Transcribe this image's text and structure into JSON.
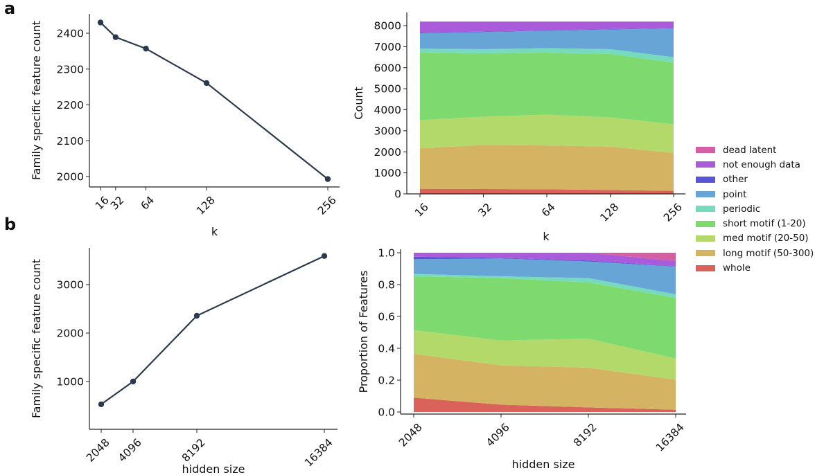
{
  "panels": {
    "a": "a",
    "b": "b"
  },
  "colors": {
    "line": "#2b3a4e",
    "dead latent": "#d45fa5",
    "not enough data": "#a95bd9",
    "other": "#5a55d6",
    "point": "#67a5d6",
    "periodic": "#76dbbe",
    "short motif (1-20)": "#7ed96e",
    "med motif (20-50)": "#b3d96a",
    "long motif (50-300)": "#d4b462",
    "whole": "#d9635a"
  },
  "legend": [
    "dead latent",
    "not enough data",
    "other",
    "point",
    "periodic",
    "short motif (1-20)",
    "med motif (20-50)",
    "long motif (50-300)",
    "whole"
  ],
  "chart_data": [
    {
      "type": "line",
      "xlabel": "k",
      "ylabel": "Family specific feature count",
      "x": [
        16,
        32,
        64,
        128,
        256
      ],
      "xticks": [
        "16",
        "32",
        "64",
        "128",
        "256"
      ],
      "y": [
        2430,
        2389,
        2357,
        2261,
        1993
      ],
      "yticks": [
        2000,
        2100,
        2200,
        2300,
        2400
      ],
      "grid": false
    },
    {
      "type": "area",
      "stacked": true,
      "xlabel": "k",
      "ylabel": "Count",
      "categories": [
        "16",
        "32",
        "64",
        "128",
        "256"
      ],
      "ylim": [
        0,
        8192
      ],
      "yticks": [
        0,
        1000,
        2000,
        3000,
        4000,
        5000,
        6000,
        7000,
        8000
      ],
      "grid": false,
      "series": [
        {
          "name": "whole",
          "values": [
            241,
            230,
            219,
            186,
            142
          ]
        },
        {
          "name": "long motif (50-300)",
          "values": [
            1929,
            2093,
            2082,
            2061,
            1809
          ]
        },
        {
          "name": "med motif (20-50)",
          "values": [
            1337,
            1348,
            1469,
            1391,
            1359
          ]
        },
        {
          "name": "short motif (1-20)",
          "values": [
            3211,
            3014,
            2948,
            3014,
            2937
          ]
        },
        {
          "name": "periodic",
          "values": [
            186,
            197,
            208,
            230,
            249
          ]
        },
        {
          "name": "point",
          "values": [
            734,
            811,
            833,
            932,
            1372
          ]
        },
        {
          "name": "other",
          "values": [
            33,
            22,
            22,
            22,
            22
          ]
        },
        {
          "name": "not enough data",
          "values": [
            521,
            477,
            411,
            356,
            302
          ]
        },
        {
          "name": "dead latent",
          "values": [
            0,
            0,
            0,
            0,
            0
          ]
        }
      ]
    },
    {
      "type": "line",
      "xlabel": "hidden size",
      "ylabel": "Family specific feature count",
      "x": [
        2048,
        4096,
        8192,
        16384
      ],
      "xticks": [
        "2048",
        "4096",
        "8192",
        "16384"
      ],
      "y": [
        530,
        1000,
        2357,
        3590
      ],
      "yticks": [
        1000,
        2000,
        3000
      ],
      "grid": false
    },
    {
      "type": "area",
      "stacked": true,
      "xlabel": "hidden size",
      "ylabel": "Proportion of Features",
      "categories": [
        "2048",
        "4096",
        "8192",
        "16384"
      ],
      "ylim": [
        0,
        1.0
      ],
      "yticks": [
        "0.0",
        "0.2",
        "0.4",
        "0.6",
        "0.8",
        "1.0"
      ],
      "grid": false,
      "series": [
        {
          "name": "whole",
          "values": [
            0.09,
            0.046,
            0.029,
            0.014
          ]
        },
        {
          "name": "long motif (50-300)",
          "values": [
            0.275,
            0.247,
            0.249,
            0.189
          ]
        },
        {
          "name": "med motif (20-50)",
          "values": [
            0.149,
            0.156,
            0.183,
            0.133
          ]
        },
        {
          "name": "short motif (1-20)",
          "values": [
            0.338,
            0.392,
            0.353,
            0.381
          ]
        },
        {
          "name": "periodic",
          "values": [
            0.015,
            0.011,
            0.027,
            0.022
          ]
        },
        {
          "name": "point",
          "values": [
            0.092,
            0.112,
            0.104,
            0.174
          ]
        },
        {
          "name": "other",
          "values": [
            0.016,
            0.004,
            0.006,
            0.003
          ]
        },
        {
          "name": "not enough data",
          "values": [
            0.025,
            0.032,
            0.049,
            0.032
          ]
        },
        {
          "name": "dead latent",
          "values": [
            0,
            0,
            0,
            0.052
          ]
        }
      ]
    }
  ]
}
